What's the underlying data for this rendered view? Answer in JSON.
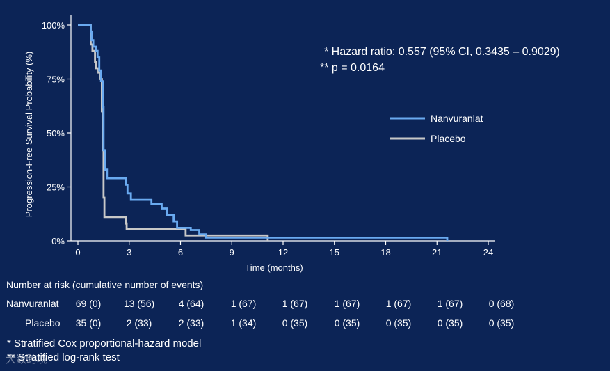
{
  "chart_data": {
    "type": "line",
    "subtype": "kaplan-meier step",
    "xlabel": "Time (months)",
    "ylabel": "Progression-Free Survival Probability (%)",
    "xlim": [
      0,
      24
    ],
    "ylim": [
      0,
      100
    ],
    "xticks": [
      0,
      3,
      6,
      9,
      12,
      15,
      18,
      21,
      24
    ],
    "yticks": [
      0,
      25,
      50,
      75,
      100
    ],
    "ytick_labels": [
      "0%",
      "25%",
      "50%",
      "75%",
      "100%"
    ],
    "grid": false,
    "legend_position": "right",
    "series": [
      {
        "name": "Nanvuranlat",
        "color": "#6aaaf0",
        "points": [
          [
            0,
            100
          ],
          [
            0.6,
            100
          ],
          [
            0.75,
            97
          ],
          [
            0.8,
            93
          ],
          [
            0.9,
            90
          ],
          [
            1.05,
            88
          ],
          [
            1.15,
            85
          ],
          [
            1.25,
            79
          ],
          [
            1.35,
            74
          ],
          [
            1.45,
            62
          ],
          [
            1.5,
            42
          ],
          [
            1.6,
            33
          ],
          [
            1.7,
            29
          ],
          [
            2.6,
            29
          ],
          [
            2.8,
            26
          ],
          [
            2.9,
            22
          ],
          [
            3.1,
            19
          ],
          [
            4.2,
            19
          ],
          [
            4.3,
            17
          ],
          [
            4.9,
            15
          ],
          [
            5.2,
            12
          ],
          [
            5.6,
            9
          ],
          [
            5.8,
            6
          ],
          [
            6.6,
            5
          ],
          [
            7.1,
            3
          ],
          [
            7.5,
            1.5
          ],
          [
            21.6,
            1.5
          ],
          [
            21.6,
            0
          ]
        ]
      },
      {
        "name": "Placebo",
        "color": "#c8c8c8",
        "points": [
          [
            0,
            100
          ],
          [
            0.6,
            100
          ],
          [
            0.75,
            91
          ],
          [
            0.85,
            88
          ],
          [
            1.0,
            83
          ],
          [
            1.05,
            80
          ],
          [
            1.2,
            78
          ],
          [
            1.3,
            75
          ],
          [
            1.4,
            60
          ],
          [
            1.45,
            42
          ],
          [
            1.5,
            20
          ],
          [
            1.55,
            11
          ],
          [
            2.7,
            11
          ],
          [
            2.8,
            8
          ],
          [
            2.85,
            5.5
          ],
          [
            6.2,
            5.5
          ],
          [
            6.3,
            2.5
          ],
          [
            11.1,
            2.5
          ],
          [
            11.1,
            0
          ]
        ]
      }
    ],
    "annotations": [
      "* Hazard ratio: 0.557  (95% CI, 0.3435 – 0.9029)",
      "** p = 0.0164"
    ]
  },
  "risk_table": {
    "title": "Number at risk (cumulative number of events)",
    "rows": [
      {
        "label": "Nanvuranlat",
        "values": [
          "69 (0)",
          "13 (56)",
          "4 (64)",
          "1 (67)",
          "1 (67)",
          "1 (67)",
          "1 (67)",
          "1 (67)",
          "0 (68)"
        ]
      },
      {
        "label": "Placebo",
        "values": [
          "35 (0)",
          "2 (33)",
          "2 (33)",
          "1 (34)",
          "0 (35)",
          "0 (35)",
          "0 (35)",
          "0 (35)",
          "0 (35)"
        ]
      }
    ]
  },
  "footnotes": [
    "*  Stratified Cox proportional-hazard model",
    "** Stratified log-rank test"
  ],
  "watermark": "大数跨境"
}
